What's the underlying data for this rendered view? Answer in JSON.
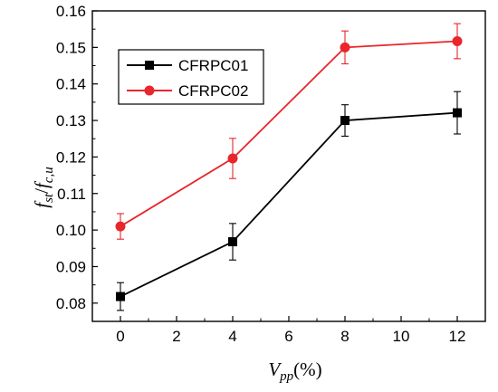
{
  "chart_data": {
    "type": "line",
    "x": [
      0,
      4,
      8,
      12
    ],
    "xlim": [
      -1,
      13
    ],
    "ylim": [
      0.075,
      0.16
    ],
    "xticks": [
      "0",
      "2",
      "4",
      "6",
      "8",
      "10",
      "12"
    ],
    "yticks": [
      "0.08",
      "0.09",
      "0.10",
      "0.11",
      "0.12",
      "0.13",
      "0.14",
      "0.15",
      "0.16"
    ],
    "xlabel": {
      "main": "V",
      "sub": "pp",
      "suffix": "(%)"
    },
    "ylabel": {
      "f1": "f",
      "s1": "st",
      "slash": "/",
      "f2": "f",
      "s2": "c,u"
    },
    "legend_position": "upper-left",
    "grid": false,
    "series": [
      {
        "name": "CFRPC01",
        "color": "#000000",
        "marker": "square",
        "values": [
          0.0818,
          0.0968,
          0.13,
          0.1321
        ],
        "errors": [
          0.0038,
          0.005,
          0.0043,
          0.0058
        ]
      },
      {
        "name": "CFRPC02",
        "color": "#e8262b",
        "marker": "circle",
        "values": [
          0.101,
          0.1196,
          0.15,
          0.1517
        ],
        "errors": [
          0.0035,
          0.0055,
          0.0045,
          0.0048
        ]
      }
    ]
  }
}
